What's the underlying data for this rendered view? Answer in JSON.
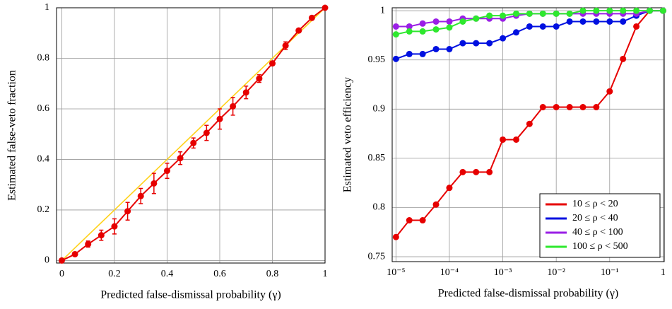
{
  "chart_data": [
    {
      "type": "line",
      "x_label": "Predicted false-dismissal probability (γ)",
      "y_label": "Estimated false-veto fraction",
      "xlim": [
        -0.02,
        1.0
      ],
      "ylim": [
        -0.01,
        1.0
      ],
      "xticks": [
        0,
        0.2,
        0.4,
        0.6,
        0.8,
        1
      ],
      "yticks": [
        0,
        0.2,
        0.4,
        0.6,
        0.8,
        1
      ],
      "grid": true,
      "reference_line": {
        "color": "#ffd21a",
        "x": [
          0,
          1
        ],
        "y": [
          0,
          1
        ]
      },
      "x": [
        0,
        0.05,
        0.1,
        0.15,
        0.2,
        0.25,
        0.3,
        0.35,
        0.4,
        0.45,
        0.5,
        0.55,
        0.6,
        0.65,
        0.7,
        0.75,
        0.8,
        0.85,
        0.9,
        0.95,
        1.0
      ],
      "series": [
        {
          "color": "#e60000",
          "values": [
            0,
            0.025,
            0.065,
            0.1,
            0.135,
            0.195,
            0.255,
            0.305,
            0.355,
            0.405,
            0.465,
            0.505,
            0.56,
            0.61,
            0.665,
            0.72,
            0.78,
            0.85,
            0.91,
            0.96,
            1.0
          ],
          "errors": [
            0.003,
            0.008,
            0.012,
            0.02,
            0.03,
            0.035,
            0.03,
            0.04,
            0.03,
            0.025,
            0.02,
            0.03,
            0.04,
            0.035,
            0.025,
            0.015,
            0.008,
            0.015,
            0.008,
            0.006,
            0.002
          ]
        }
      ]
    },
    {
      "type": "line",
      "x_label": "Predicted false-dismissal probability (γ)",
      "y_label": "Estimated veto efficiency",
      "log_x": true,
      "xlim": [
        8.5e-06,
        1.05
      ],
      "ylim": [
        0.745,
        1.003
      ],
      "xticks": [
        {
          "value": 1e-05,
          "label": "10⁻⁵"
        },
        {
          "value": 0.0001,
          "label": "10⁻⁴"
        },
        {
          "value": 0.001,
          "label": "10⁻³"
        },
        {
          "value": 0.01,
          "label": "10⁻²"
        },
        {
          "value": 0.1,
          "label": "10⁻¹"
        },
        1
      ],
      "yticks": [
        0.75,
        0.8,
        0.85,
        0.9,
        0.95,
        1
      ],
      "grid": true,
      "legend": "lower right",
      "x": [
        1e-05,
        1.78e-05,
        3.16e-05,
        5.62e-05,
        0.0001,
        0.000178,
        0.000316,
        0.000562,
        0.001,
        0.00178,
        0.00316,
        0.00562,
        0.01,
        0.0178,
        0.0316,
        0.0562,
        0.1,
        0.178,
        0.316,
        0.562,
        1
      ],
      "series": [
        {
          "name": "10 ≤ ρ < 20",
          "color": "#e60000",
          "values": [
            0.77,
            0.787,
            0.787,
            0.803,
            0.82,
            0.836,
            0.836,
            0.836,
            0.869,
            0.869,
            0.885,
            0.902,
            0.902,
            0.902,
            0.902,
            0.902,
            0.918,
            0.951,
            0.984,
            1.0,
            1.0
          ]
        },
        {
          "name": "20 ≤ ρ < 40",
          "color": "#0010e0",
          "values": [
            0.951,
            0.956,
            0.956,
            0.961,
            0.961,
            0.967,
            0.967,
            0.967,
            0.972,
            0.978,
            0.984,
            0.984,
            0.984,
            0.989,
            0.989,
            0.989,
            0.989,
            0.989,
            0.995,
            1.0,
            1.0
          ]
        },
        {
          "name": "40 ≤ ρ < 100",
          "color": "#9a1fe6",
          "values": [
            0.984,
            0.984,
            0.987,
            0.989,
            0.989,
            0.992,
            0.992,
            0.992,
            0.992,
            0.995,
            0.997,
            0.997,
            0.997,
            0.997,
            0.997,
            0.997,
            0.997,
            0.997,
            0.997,
            1.0,
            1.0
          ]
        },
        {
          "name": "100 ≤ ρ < 500",
          "color": "#2ee82e",
          "values": [
            0.976,
            0.979,
            0.979,
            0.981,
            0.983,
            0.989,
            0.992,
            0.995,
            0.995,
            0.997,
            0.997,
            0.997,
            0.997,
            0.997,
            1.0,
            1.0,
            1.0,
            1.0,
            1.0,
            1.0,
            1.0
          ]
        }
      ]
    }
  ]
}
